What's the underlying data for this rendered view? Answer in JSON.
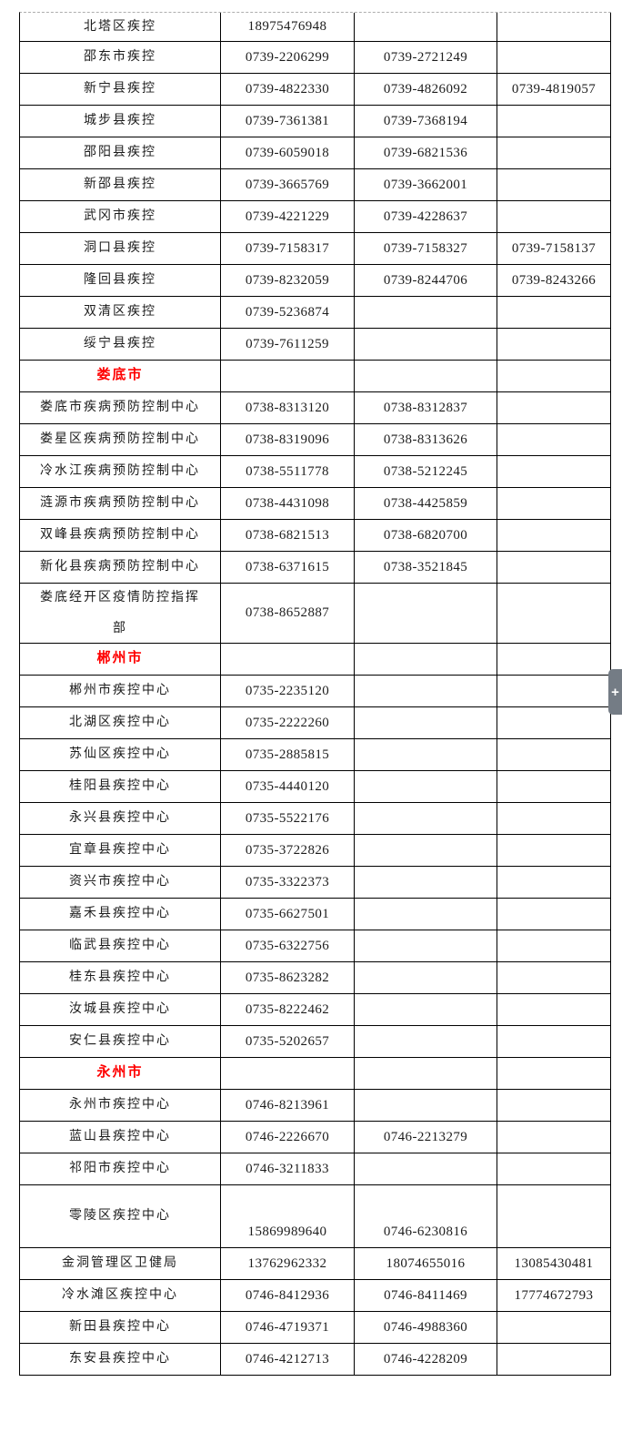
{
  "ui": {
    "expand_button": {
      "glyph": "+"
    }
  },
  "colors": {
    "grid_border": "#000000",
    "top_dashed_border": "#aeaeae",
    "section_header_red": "#ff0000",
    "body_text": "#1c1c1c",
    "pill_background": "#747c85",
    "pill_glyph": "#ffffff"
  },
  "table": {
    "rows": [
      {
        "type": "data",
        "name": "北塔区疾控",
        "phones": [
          "18975476948",
          "",
          ""
        ]
      },
      {
        "type": "data",
        "name": "邵东市疾控",
        "phones": [
          "0739-2206299",
          "0739-2721249",
          ""
        ]
      },
      {
        "type": "data",
        "name": "新宁县疾控",
        "phones": [
          "0739-4822330",
          "0739-4826092",
          "0739-4819057"
        ]
      },
      {
        "type": "data",
        "name": "城步县疾控",
        "phones": [
          "0739-7361381",
          "0739-7368194",
          ""
        ]
      },
      {
        "type": "data",
        "name": "邵阳县疾控",
        "phones": [
          "0739-6059018",
          "0739-6821536",
          ""
        ]
      },
      {
        "type": "data",
        "name": "新邵县疾控",
        "phones": [
          "0739-3665769",
          "0739-3662001",
          ""
        ]
      },
      {
        "type": "data",
        "name": "武冈市疾控",
        "phones": [
          "0739-4221229",
          "0739-4228637",
          ""
        ]
      },
      {
        "type": "data",
        "name": "洞口县疾控",
        "phones": [
          "0739-7158317",
          "0739-7158327",
          "0739-7158137"
        ]
      },
      {
        "type": "data",
        "name": "隆回县疾控",
        "phones": [
          "0739-8232059",
          "0739-8244706",
          "0739-8243266"
        ]
      },
      {
        "type": "data",
        "name": "双清区疾控",
        "phones": [
          "0739-5236874",
          "",
          ""
        ]
      },
      {
        "type": "data",
        "name": "绥宁县疾控",
        "phones": [
          "0739-7611259",
          "",
          ""
        ]
      },
      {
        "type": "section",
        "name": "娄底市",
        "phones": [
          "",
          "",
          ""
        ]
      },
      {
        "type": "data",
        "name": "娄底市疾病预防控制中心",
        "phones": [
          "0738-8313120",
          "0738-8312837",
          ""
        ]
      },
      {
        "type": "data",
        "name": "娄星区疾病预防控制中心",
        "phones": [
          "0738-8319096",
          "0738-8313626",
          ""
        ]
      },
      {
        "type": "data",
        "name": "冷水江疾病预防控制中心",
        "phones": [
          "0738-5511778",
          "0738-5212245",
          ""
        ]
      },
      {
        "type": "data",
        "name": "涟源市疾病预防控制中心",
        "phones": [
          "0738-4431098",
          "0738-4425859",
          ""
        ]
      },
      {
        "type": "data",
        "name": "双峰县疾病预防控制中心",
        "phones": [
          "0738-6821513",
          "0738-6820700",
          ""
        ]
      },
      {
        "type": "data",
        "name": "新化县疾病预防控制中心",
        "phones": [
          "0738-6371615",
          "0738-3521845",
          ""
        ]
      },
      {
        "type": "data",
        "name": "娄底经开区疫情防控指挥部",
        "phones": [
          "0738-8652887",
          "",
          ""
        ]
      },
      {
        "type": "section",
        "name": "郴州市",
        "phones": [
          "",
          "",
          ""
        ]
      },
      {
        "type": "data",
        "name": "郴州市疾控中心",
        "phones": [
          "0735-2235120",
          "",
          ""
        ]
      },
      {
        "type": "data",
        "name": "北湖区疾控中心",
        "phones": [
          "0735-2222260",
          "",
          ""
        ]
      },
      {
        "type": "data",
        "name": "苏仙区疾控中心",
        "phones": [
          "0735-2885815",
          "",
          ""
        ]
      },
      {
        "type": "data",
        "name": "桂阳县疾控中心",
        "phones": [
          "0735-4440120",
          "",
          ""
        ]
      },
      {
        "type": "data",
        "name": "永兴县疾控中心",
        "phones": [
          "0735-5522176",
          "",
          ""
        ]
      },
      {
        "type": "data",
        "name": "宜章县疾控中心",
        "phones": [
          "0735-3722826",
          "",
          ""
        ]
      },
      {
        "type": "data",
        "name": "资兴市疾控中心",
        "phones": [
          "0735-3322373",
          "",
          ""
        ]
      },
      {
        "type": "data",
        "name": "嘉禾县疾控中心",
        "phones": [
          "0735-6627501",
          "",
          ""
        ]
      },
      {
        "type": "data",
        "name": "临武县疾控中心",
        "phones": [
          "0735-6322756",
          "",
          ""
        ]
      },
      {
        "type": "data",
        "name": "桂东县疾控中心",
        "phones": [
          "0735-8623282",
          "",
          ""
        ]
      },
      {
        "type": "data",
        "name": "汝城县疾控中心",
        "phones": [
          "0735-8222462",
          "",
          ""
        ]
      },
      {
        "type": "data",
        "name": "安仁县疾控中心",
        "phones": [
          "0735-5202657",
          "",
          ""
        ]
      },
      {
        "type": "section",
        "name": "永州市",
        "phones": [
          "",
          "",
          ""
        ]
      },
      {
        "type": "data",
        "name": "永州市疾控中心",
        "phones": [
          "0746-8213961",
          "",
          ""
        ]
      },
      {
        "type": "data",
        "name": "蓝山县疾控中心",
        "phones": [
          "0746-2226670",
          "0746-2213279",
          ""
        ]
      },
      {
        "type": "data",
        "name": "祁阳市疾控中心",
        "phones": [
          "0746-3211833",
          "",
          ""
        ]
      },
      {
        "type": "data",
        "name": "零陵区疾控中心",
        "phones": [
          "15869989640",
          "0746-6230816",
          ""
        ]
      },
      {
        "type": "data",
        "name": "金洞管理区卫健局",
        "phones": [
          "13762962332",
          "18074655016",
          "13085430481"
        ]
      },
      {
        "type": "data",
        "name": "冷水滩区疾控中心",
        "phones": [
          "0746-8412936",
          "0746-8411469",
          "17774672793"
        ]
      },
      {
        "type": "data",
        "name": "新田县疾控中心",
        "phones": [
          "0746-4719371",
          "0746-4988360",
          ""
        ]
      },
      {
        "type": "data",
        "name": "东安县疾控中心",
        "phones": [
          "0746-4212713",
          "0746-4228209",
          ""
        ]
      }
    ]
  }
}
